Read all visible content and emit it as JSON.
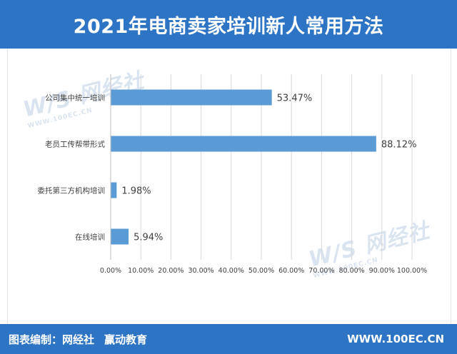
{
  "header": {
    "title": "2021年电商卖家培训新人常用方法"
  },
  "footer": {
    "credit_prefix": "图表编制：网经社",
    "credit_partner": "赢动教育",
    "site": "WWW.100EC.CN"
  },
  "watermark": {
    "brand": "W/S 网经社",
    "sub": "WWW.100EC.CN"
  },
  "colors": {
    "header_bg": "#2E74C5",
    "bar": "#5B9BD5",
    "grid": "#D9D9D9",
    "text": "#404040"
  },
  "chart_data": {
    "type": "bar",
    "orientation": "horizontal",
    "categories": [
      "公司集中统一培训",
      "老员工传帮带形式",
      "委托第三方机构培训",
      "在线培训"
    ],
    "values": [
      53.47,
      88.12,
      1.98,
      5.94
    ],
    "value_labels": [
      "53.47%",
      "88.12%",
      "1.98%",
      "5.94%"
    ],
    "xlim": [
      0,
      100
    ],
    "xticks": [
      "0.00%",
      "10.00%",
      "20.00%",
      "30.00%",
      "40.00%",
      "50.00%",
      "60.00%",
      "70.00%",
      "80.00%",
      "90.00%",
      "100.00%"
    ],
    "grid": true,
    "legend": "none",
    "title": "",
    "xlabel": "",
    "ylabel": ""
  }
}
